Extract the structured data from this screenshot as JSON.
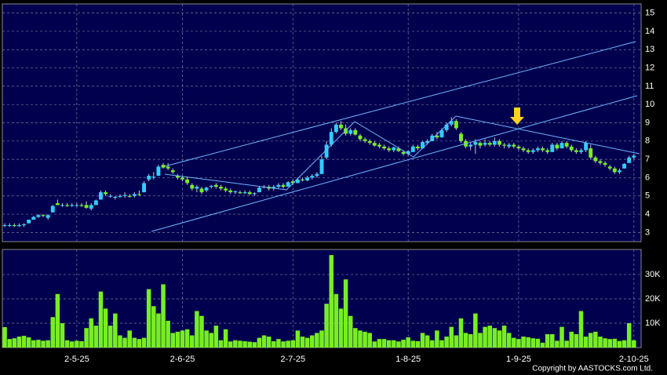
{
  "chart_data": [
    {
      "type": "candlestick",
      "ylim": [
        2.5,
        15.5
      ],
      "yticks": [
        3,
        4,
        5,
        6,
        7,
        8,
        9,
        10,
        11,
        12,
        13,
        14,
        15
      ],
      "grid": true,
      "xlim": [
        -0.5,
        132.5
      ],
      "xticks": [
        {
          "value": 15,
          "label": "2-5-25"
        },
        {
          "value": 37,
          "label": "2-6-25"
        },
        {
          "value": 60,
          "label": "2-7-25"
        },
        {
          "value": 84,
          "label": "1-8-25"
        },
        {
          "value": 107,
          "label": "1-9-25"
        },
        {
          "value": 131,
          "label": "2-10-25"
        }
      ],
      "up_color": "#33ccff",
      "down_color": "#77ee22",
      "ohlc": [
        [
          3.4,
          3.5,
          3.3,
          3.4
        ],
        [
          3.4,
          3.5,
          3.3,
          3.4
        ],
        [
          3.4,
          3.5,
          3.3,
          3.35
        ],
        [
          3.35,
          3.5,
          3.3,
          3.4
        ],
        [
          3.4,
          3.5,
          3.3,
          3.45
        ],
        [
          3.5,
          3.7,
          3.5,
          3.7
        ],
        [
          3.7,
          3.9,
          3.7,
          3.85
        ],
        [
          3.85,
          4.0,
          3.8,
          3.95
        ],
        [
          3.95,
          4.0,
          3.85,
          3.9
        ],
        [
          3.8,
          4.0,
          3.7,
          3.95
        ],
        [
          4.1,
          4.5,
          4.1,
          4.45
        ],
        [
          4.6,
          4.8,
          4.5,
          4.5
        ],
        [
          4.5,
          4.6,
          4.4,
          4.5
        ],
        [
          4.5,
          4.6,
          4.4,
          4.45
        ],
        [
          4.45,
          4.6,
          4.4,
          4.5
        ],
        [
          4.5,
          4.6,
          4.4,
          4.5
        ],
        [
          4.5,
          4.6,
          4.4,
          4.45
        ],
        [
          4.5,
          4.7,
          4.3,
          4.35
        ],
        [
          4.3,
          4.6,
          4.2,
          4.5
        ],
        [
          4.5,
          4.8,
          4.5,
          4.75
        ],
        [
          4.8,
          5.3,
          4.8,
          5.2
        ],
        [
          5.2,
          5.3,
          5.0,
          5.1
        ],
        [
          5.0,
          5.1,
          4.9,
          5.0
        ],
        [
          4.9,
          5.0,
          4.8,
          4.95
        ],
        [
          4.95,
          5.1,
          4.9,
          5.0
        ],
        [
          5.0,
          5.2,
          4.9,
          5.05
        ],
        [
          5.0,
          5.1,
          4.9,
          4.95
        ],
        [
          5.0,
          5.2,
          4.9,
          5.1
        ],
        [
          5.1,
          5.3,
          5.0,
          5.05
        ],
        [
          5.2,
          5.8,
          5.2,
          5.7
        ],
        [
          5.9,
          6.2,
          5.8,
          6.1
        ],
        [
          6.0,
          6.3,
          5.9,
          6.05
        ],
        [
          6.1,
          6.7,
          6.1,
          6.6
        ],
        [
          6.7,
          6.8,
          6.5,
          6.55
        ],
        [
          6.6,
          6.8,
          6.4,
          6.5
        ],
        [
          6.4,
          6.5,
          6.2,
          6.3
        ],
        [
          6.1,
          6.2,
          5.9,
          6.0
        ],
        [
          6.0,
          6.1,
          5.8,
          5.9
        ],
        [
          5.9,
          6.0,
          5.6,
          5.7
        ],
        [
          5.6,
          5.7,
          5.3,
          5.4
        ],
        [
          5.4,
          5.6,
          5.2,
          5.5
        ],
        [
          5.4,
          5.5,
          5.1,
          5.2
        ],
        [
          5.3,
          5.5,
          5.2,
          5.45
        ],
        [
          5.5,
          5.6,
          5.4,
          5.55
        ],
        [
          5.6,
          5.7,
          5.4,
          5.5
        ],
        [
          5.5,
          5.6,
          5.3,
          5.4
        ],
        [
          5.4,
          5.5,
          5.2,
          5.3
        ],
        [
          5.3,
          5.4,
          5.1,
          5.2
        ],
        [
          5.2,
          5.3,
          5.1,
          5.25
        ],
        [
          5.2,
          5.3,
          5.1,
          5.15
        ],
        [
          5.15,
          5.3,
          5.1,
          5.2
        ],
        [
          5.2,
          5.3,
          5.05,
          5.1
        ],
        [
          5.1,
          5.2,
          5.0,
          5.15
        ],
        [
          5.2,
          5.5,
          5.2,
          5.45
        ],
        [
          5.5,
          5.6,
          5.4,
          5.5
        ],
        [
          5.5,
          5.6,
          5.3,
          5.4
        ],
        [
          5.4,
          5.6,
          5.3,
          5.5
        ],
        [
          5.5,
          5.7,
          5.4,
          5.6
        ],
        [
          5.6,
          5.7,
          5.4,
          5.5
        ],
        [
          5.5,
          5.8,
          5.5,
          5.75
        ],
        [
          5.8,
          5.9,
          5.6,
          5.7
        ],
        [
          5.7,
          6.0,
          5.7,
          5.9
        ],
        [
          5.9,
          6.0,
          5.8,
          5.85
        ],
        [
          5.85,
          6.1,
          5.8,
          6.0
        ],
        [
          6.0,
          6.2,
          5.9,
          6.1
        ],
        [
          6.1,
          6.3,
          6.0,
          6.2
        ],
        [
          6.2,
          7.2,
          6.2,
          7.0
        ],
        [
          7.1,
          8.0,
          7.0,
          7.8
        ],
        [
          7.8,
          8.7,
          7.7,
          8.5
        ],
        [
          8.5,
          9.0,
          8.4,
          8.9
        ],
        [
          8.9,
          9.1,
          8.6,
          8.7
        ],
        [
          8.7,
          8.9,
          8.3,
          8.4
        ],
        [
          8.4,
          8.7,
          8.3,
          8.6
        ],
        [
          8.6,
          8.7,
          8.3,
          8.35
        ],
        [
          8.3,
          8.4,
          8.0,
          8.1
        ],
        [
          8.1,
          8.2,
          7.9,
          8.0
        ],
        [
          8.0,
          8.1,
          7.8,
          7.9
        ],
        [
          7.9,
          8.0,
          7.7,
          7.75
        ],
        [
          7.8,
          7.9,
          7.6,
          7.7
        ],
        [
          7.7,
          7.8,
          7.5,
          7.6
        ],
        [
          7.6,
          7.7,
          7.4,
          7.5
        ],
        [
          7.5,
          7.7,
          7.4,
          7.65
        ],
        [
          7.6,
          7.7,
          7.4,
          7.45
        ],
        [
          7.4,
          7.5,
          7.2,
          7.3
        ],
        [
          7.3,
          7.5,
          7.2,
          7.45
        ],
        [
          7.4,
          7.8,
          7.4,
          7.7
        ],
        [
          7.7,
          7.8,
          7.5,
          7.6
        ],
        [
          7.6,
          8.0,
          7.6,
          7.95
        ],
        [
          7.9,
          8.1,
          7.8,
          8.0
        ],
        [
          8.0,
          8.4,
          8.0,
          8.3
        ],
        [
          8.3,
          8.5,
          8.1,
          8.2
        ],
        [
          8.2,
          8.7,
          8.2,
          8.6
        ],
        [
          8.6,
          9.0,
          8.5,
          8.9
        ],
        [
          8.9,
          9.3,
          8.8,
          9.1
        ],
        [
          9.1,
          9.2,
          8.6,
          8.7
        ],
        [
          8.4,
          8.5,
          7.9,
          8.0
        ],
        [
          8.0,
          8.1,
          7.6,
          7.7
        ],
        [
          7.7,
          7.9,
          7.5,
          7.8
        ],
        [
          7.8,
          8.1,
          7.3,
          7.95
        ],
        [
          7.9,
          8.0,
          7.6,
          7.75
        ],
        [
          7.8,
          8.1,
          7.7,
          7.9
        ],
        [
          7.9,
          8.0,
          7.7,
          7.8
        ],
        [
          7.8,
          8.2,
          7.7,
          8.0
        ],
        [
          8.0,
          8.1,
          7.7,
          7.8
        ],
        [
          7.8,
          7.9,
          7.6,
          7.75
        ],
        [
          7.7,
          7.9,
          7.6,
          7.8
        ],
        [
          7.8,
          7.9,
          7.6,
          7.7
        ],
        [
          7.7,
          7.8,
          7.5,
          7.6
        ],
        [
          7.6,
          7.7,
          7.4,
          7.5
        ],
        [
          7.5,
          7.6,
          7.3,
          7.4
        ],
        [
          7.4,
          7.6,
          7.3,
          7.5
        ],
        [
          7.5,
          7.7,
          7.4,
          7.6
        ],
        [
          7.6,
          7.7,
          7.4,
          7.5
        ],
        [
          7.5,
          7.6,
          7.3,
          7.4
        ],
        [
          7.4,
          7.9,
          7.4,
          7.8
        ],
        [
          7.8,
          7.9,
          7.5,
          7.6
        ],
        [
          7.6,
          8.0,
          7.6,
          7.9
        ],
        [
          7.9,
          8.0,
          7.6,
          7.7
        ],
        [
          7.7,
          7.8,
          7.4,
          7.5
        ],
        [
          7.5,
          7.6,
          7.3,
          7.4
        ],
        [
          7.4,
          7.6,
          7.3,
          7.5
        ],
        [
          7.5,
          8.0,
          7.4,
          7.9
        ],
        [
          7.6,
          7.8,
          7.0,
          7.1
        ],
        [
          7.1,
          7.2,
          6.8,
          6.9
        ],
        [
          6.9,
          7.0,
          6.7,
          6.8
        ],
        [
          6.8,
          6.9,
          6.6,
          6.7
        ],
        [
          6.6,
          6.7,
          6.4,
          6.5
        ],
        [
          6.5,
          6.6,
          6.2,
          6.3
        ],
        [
          6.3,
          6.5,
          6.2,
          6.4
        ],
        [
          6.5,
          6.8,
          6.5,
          6.75
        ],
        [
          6.8,
          7.2,
          6.8,
          7.1
        ],
        [
          7.1,
          7.3,
          7.0,
          7.2
        ]
      ]
    },
    {
      "type": "bar",
      "color": "#77ee22",
      "ylim": [
        0,
        40300
      ],
      "yticks": [
        {
          "value": 10000,
          "label": "10K"
        },
        {
          "value": 20000,
          "label": "20K"
        },
        {
          "value": 30000,
          "label": "30K"
        }
      ],
      "grid": true,
      "xlim": [
        -0.5,
        132.5
      ],
      "xticks": [
        {
          "value": 15,
          "label": "2-5-25"
        },
        {
          "value": 37,
          "label": "2-6-25"
        },
        {
          "value": 60,
          "label": "2-7-25"
        },
        {
          "value": 84,
          "label": "1-8-25"
        },
        {
          "value": 107,
          "label": "1-9-25"
        },
        {
          "value": 131,
          "label": "2-10-25"
        }
      ],
      "values": [
        8400,
        3500,
        3800,
        4500,
        4800,
        4200,
        3000,
        3200,
        2800,
        3000,
        12500,
        22000,
        10000,
        3000,
        2500,
        2800,
        2600,
        8000,
        12000,
        9000,
        23000,
        16000,
        9000,
        14000,
        5000,
        4000,
        7000,
        4000,
        3500,
        4000,
        24000,
        17000,
        14000,
        26000,
        11000,
        6000,
        6500,
        7000,
        7500,
        5000,
        15000,
        13000,
        7000,
        6000,
        9000,
        3000,
        7500,
        2500,
        3000,
        2800,
        2600,
        2400,
        2200,
        4000,
        5000,
        4500,
        2600,
        3500,
        2500,
        2800,
        3000,
        7000,
        4500,
        4000,
        5000,
        6000,
        7000,
        18000,
        38000,
        22000,
        16000,
        28000,
        13000,
        8000,
        7000,
        6500,
        6000,
        2500,
        3500,
        3500,
        3000,
        3000,
        2500,
        3200,
        4200,
        2800,
        2600,
        6000,
        5000,
        3000,
        7000,
        3000,
        4500,
        8500,
        5000,
        12000,
        6000,
        5500,
        14000,
        6000,
        8500,
        9000,
        8000,
        7000,
        9000,
        6000,
        4000,
        3500,
        4500,
        4200,
        3800,
        3600,
        2000,
        5500,
        5500,
        2800,
        8500,
        2800,
        6500,
        5500,
        15000,
        4500,
        6000,
        6500,
        4500,
        3800,
        3500,
        3600,
        2700,
        3000,
        10000,
        3000
      ]
    }
  ],
  "copyright": "Copyright by AASTOCKS.com Ltd."
}
